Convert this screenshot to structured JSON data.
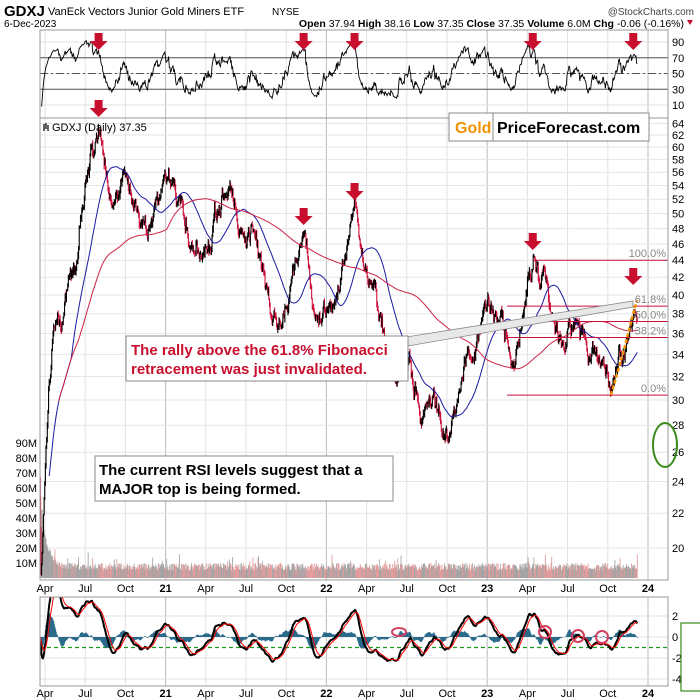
{
  "header": {
    "symbol": "GDXJ",
    "name": "VanEck Vectors Junior Gold Miners ETF",
    "exchange": "NYSE",
    "date": "6-Dec-2023",
    "copyright": "@StockCharts.com",
    "open_label": "Open",
    "open": "37.94",
    "high_label": "High",
    "high": "38.16",
    "low_label": "Low",
    "low": "37.35",
    "close_label": "Close",
    "close": "37.35",
    "volume_label": "Volume",
    "volume": "6.0M",
    "chg_label": "Chg",
    "chg": "-0.06 (-0.16%)"
  },
  "logo": {
    "gold": "Gold",
    "rest": "PriceForecast.com"
  },
  "annotations": {
    "fib_note_lines": [
      "The rally above the 61.8% Fibonacci",
      "retracement was just invalidated."
    ],
    "rsi_note_lines": [
      "The current RSI levels suggest that a",
      "MAJOR top is being formed."
    ]
  },
  "colors": {
    "up_candle": "#000000",
    "down_candle": "#d0103a",
    "ma_short": "#1a1aa0",
    "ma_long": "#cc2244",
    "arrow": "#c8102e",
    "fib_line": "#c8103e",
    "volume_up": "#9a9a9a",
    "volume_down": "#e09090",
    "osc_line": "#000000",
    "osc_signal": "#ff0000",
    "osc_hist": "#2a6a8a",
    "threshold": "#1a9a1a",
    "logo_gold": "#f39200",
    "ellipse": "#3a8a1a"
  },
  "chart_data": {
    "type": "line",
    "title": "GDXJ (Daily) 37.35",
    "x_unit": "months since Jan 2020",
    "x_ticks": [
      {
        "m": 3,
        "label": "Apr",
        "year": false
      },
      {
        "m": 6,
        "label": "Jul",
        "year": false
      },
      {
        "m": 9,
        "label": "Oct",
        "year": false
      },
      {
        "m": 12,
        "label": "21",
        "year": true
      },
      {
        "m": 15,
        "label": "Apr",
        "year": false
      },
      {
        "m": 18,
        "label": "Jul",
        "year": false
      },
      {
        "m": 21,
        "label": "Oct",
        "year": false
      },
      {
        "m": 24,
        "label": "22",
        "year": true
      },
      {
        "m": 27,
        "label": "Apr",
        "year": false
      },
      {
        "m": 30,
        "label": "Jul",
        "year": false
      },
      {
        "m": 33,
        "label": "Oct",
        "year": false
      },
      {
        "m": 36,
        "label": "23",
        "year": true
      },
      {
        "m": 39,
        "label": "Apr",
        "year": false
      },
      {
        "m": 42,
        "label": "Jul",
        "year": false
      },
      {
        "m": 45,
        "label": "Oct",
        "year": false
      },
      {
        "m": 48,
        "label": "24",
        "year": true
      }
    ],
    "price_ticks": [
      64,
      62,
      60,
      58,
      56,
      54,
      52,
      50,
      48,
      46,
      44,
      42,
      40,
      38,
      36,
      34,
      32,
      30,
      28,
      26,
      24,
      22,
      20
    ],
    "price_scale": "log",
    "rsi_ticks": [
      90,
      70,
      50,
      30,
      10
    ],
    "rsi_bands": [
      70,
      50,
      30
    ],
    "volume_ticks": [
      "90M",
      "80M",
      "70M",
      "60M",
      "50M",
      "40M",
      "30M",
      "20M",
      "10M"
    ],
    "osc_ticks": [
      2,
      0,
      -2,
      -4
    ],
    "osc_threshold": -1,
    "price_path": [
      [
        2.6,
        24
      ],
      [
        2.7,
        18
      ],
      [
        2.9,
        22
      ],
      [
        3.3,
        32
      ],
      [
        3.7,
        38
      ],
      [
        4.2,
        36
      ],
      [
        4.8,
        42
      ],
      [
        5.5,
        48
      ],
      [
        6.3,
        58
      ],
      [
        7.0,
        63
      ],
      [
        7.4,
        58
      ],
      [
        8.2,
        52
      ],
      [
        8.8,
        55
      ],
      [
        9.8,
        50
      ],
      [
        10.5,
        48
      ],
      [
        11.5,
        52
      ],
      [
        12.3,
        55
      ],
      [
        13.0,
        50
      ],
      [
        14.0,
        46
      ],
      [
        15.0,
        44
      ],
      [
        16.2,
        52
      ],
      [
        16.9,
        53
      ],
      [
        17.6,
        46
      ],
      [
        18.5,
        47
      ],
      [
        19.5,
        40
      ],
      [
        20.3,
        37
      ],
      [
        21.0,
        40
      ],
      [
        22.3,
        46.5
      ],
      [
        23.0,
        40
      ],
      [
        24.0,
        38
      ],
      [
        25.0,
        40
      ],
      [
        26.1,
        51
      ],
      [
        26.8,
        44
      ],
      [
        28.0,
        38
      ],
      [
        29.2,
        31
      ],
      [
        30.2,
        33
      ],
      [
        31.0,
        29
      ],
      [
        32.0,
        30
      ],
      [
        32.8,
        26.5
      ],
      [
        33.5,
        30
      ],
      [
        34.5,
        34
      ],
      [
        35.5,
        37
      ],
      [
        36.2,
        39
      ],
      [
        37.0,
        38
      ],
      [
        38.0,
        33
      ],
      [
        39.0,
        40
      ],
      [
        39.5,
        43.5
      ],
      [
        40.2,
        42
      ],
      [
        41.0,
        37
      ],
      [
        42.0,
        35
      ],
      [
        43.0,
        37
      ],
      [
        43.7,
        34
      ],
      [
        44.6,
        33
      ],
      [
        45.2,
        30.5
      ],
      [
        45.7,
        33
      ],
      [
        46.3,
        34.5
      ],
      [
        46.8,
        38
      ],
      [
        47.1,
        39.5
      ],
      [
        47.2,
        37.35
      ]
    ],
    "last_close": 37.35,
    "fib_levels": [
      {
        "label": "100.0%",
        "price": 44.0
      },
      {
        "label": "61.8%",
        "price": 38.8
      },
      {
        "label": "50.0%",
        "price": 37.2
      },
      {
        "label": "38.2%",
        "price": 35.6
      },
      {
        "label": "0.0%",
        "price": 30.4
      }
    ],
    "top_signals_m": [
      7.0,
      22.3,
      26.1,
      39.4,
      46.9
    ]
  }
}
